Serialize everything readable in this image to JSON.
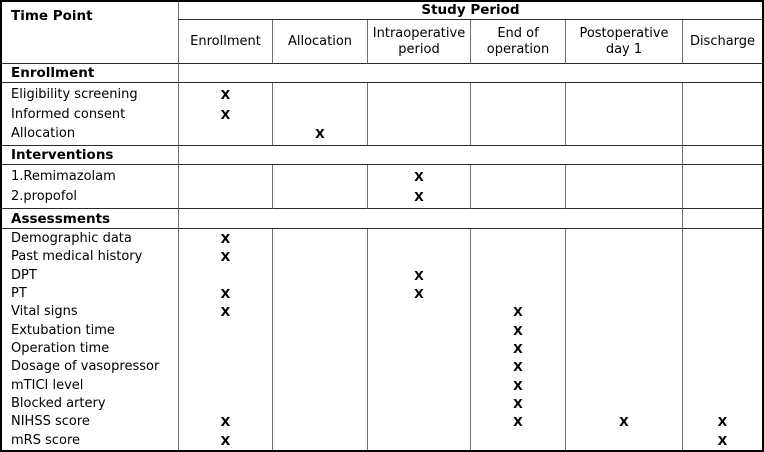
{
  "table": {
    "corner_label": "Time Point",
    "group_header": "Study Period",
    "mark_symbol": "X",
    "columns": [
      "Enrollment",
      "Allocation",
      "Intraoperative period",
      "End of operation",
      "Postoperative day 1",
      "Discharge"
    ],
    "sections": [
      {
        "title": "Enrollment",
        "rows": [
          {
            "label": "Eligibility screening",
            "marks": [
              0
            ]
          },
          {
            "label": "Informed consent",
            "marks": [
              0
            ]
          },
          {
            "label": "Allocation",
            "marks": [
              1
            ]
          }
        ]
      },
      {
        "title": "Interventions",
        "rows": [
          {
            "label": "1.Remimazolam",
            "marks": [
              2
            ]
          },
          {
            "label": "2.propofol",
            "marks": [
              2
            ]
          }
        ]
      },
      {
        "title": "Assessments",
        "rows": [
          {
            "label": "Demographic data",
            "marks": [
              0
            ]
          },
          {
            "label": "Past medical history",
            "marks": [
              0
            ]
          },
          {
            "label": "DPT",
            "marks": [
              2
            ]
          },
          {
            "label": "PT",
            "marks": [
              0,
              2
            ]
          },
          {
            "label": "Vital signs",
            "marks": [
              0,
              3
            ]
          },
          {
            "label": "Extubation time",
            "marks": [
              3
            ]
          },
          {
            "label": "Operation time",
            "marks": [
              3
            ]
          },
          {
            "label": "Dosage of vasopressor",
            "marks": [
              3
            ]
          },
          {
            "label": "mTICI level",
            "marks": [
              3
            ]
          },
          {
            "label": "Blocked artery",
            "marks": [
              3
            ]
          },
          {
            "label": "NIHSS score",
            "marks": [
              0,
              3,
              4,
              5
            ]
          },
          {
            "label": "mRS score",
            "marks": [
              0,
              5
            ]
          }
        ]
      }
    ]
  }
}
